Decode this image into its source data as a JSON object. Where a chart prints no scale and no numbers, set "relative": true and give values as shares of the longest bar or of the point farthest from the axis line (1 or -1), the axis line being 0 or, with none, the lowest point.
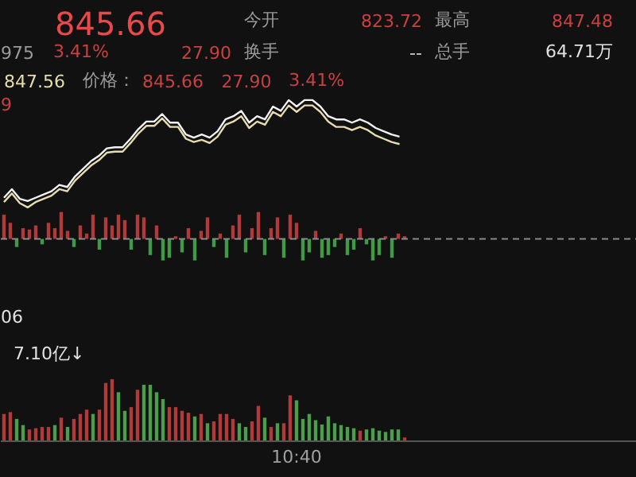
{
  "chart_data": [
    {
      "type": "other",
      "annotations": [
        "845.66",
        "今开",
        "823.72",
        "最高",
        "847.48",
        "975",
        "3.41%",
        "27.90",
        "换手",
        "--",
        "总手",
        "64.71万"
      ]
    },
    {
      "type": "line",
      "relative": true,
      "categories": [
        null,
        null,
        null,
        null,
        null,
        null,
        null,
        null,
        null,
        null,
        null,
        null,
        null,
        null,
        null,
        null,
        null,
        null,
        null,
        null,
        null,
        null,
        null,
        null,
        null,
        null,
        null,
        null,
        null,
        null,
        null,
        null,
        null,
        null,
        null,
        null,
        null,
        null,
        null,
        null,
        null,
        null,
        null,
        null,
        null,
        null,
        null,
        null,
        null,
        null,
        null
      ],
      "series": [
        {
          "color": "#f2f2f2",
          "values": [
            0.09,
            0.17,
            0.08,
            0.06,
            0.09,
            0.12,
            0.15,
            0.21,
            0.19,
            0.29,
            0.36,
            0.43,
            0.48,
            0.55,
            0.56,
            0.56,
            0.64,
            0.73,
            0.8,
            0.8,
            0.87,
            0.79,
            0.79,
            0.68,
            0.65,
            0.68,
            0.65,
            0.71,
            0.82,
            0.85,
            0.9,
            0.79,
            0.85,
            0.82,
            0.94,
            0.9,
            1,
            0.94,
            1,
            1,
            0.94,
            0.85,
            0.82,
            0.82,
            0.79,
            0.82,
            0.79,
            0.74,
            0.71,
            0.68,
            0.66
          ]
        },
        {
          "color": "#e6dcae",
          "values": [
            0.05,
            0.13,
            0.04,
            0.0,
            0.05,
            0.08,
            0.11,
            0.17,
            0.15,
            0.25,
            0.32,
            0.39,
            0.44,
            0.51,
            0.52,
            0.52,
            0.6,
            0.69,
            0.76,
            0.76,
            0.83,
            0.75,
            0.75,
            0.64,
            0.61,
            0.63,
            0.6,
            0.66,
            0.77,
            0.8,
            0.85,
            0.74,
            0.8,
            0.77,
            0.89,
            0.85,
            0.95,
            0.89,
            0.95,
            0.95,
            0.89,
            0.8,
            0.75,
            0.75,
            0.72,
            0.75,
            0.72,
            0.67,
            0.64,
            0.61,
            0.59
          ]
        }
      ],
      "annotations": [
        "847.56",
        "价格：",
        "845.66",
        "27.90",
        "3.41%",
        "9"
      ]
    },
    {
      "type": "bar",
      "relative": true,
      "categories": [
        null,
        null,
        null,
        null,
        null,
        null,
        null,
        null,
        null,
        null,
        null,
        null,
        null,
        null,
        null,
        null,
        null,
        null,
        null,
        null,
        null,
        null,
        null,
        null,
        null,
        null,
        null,
        null,
        null,
        null,
        null,
        null,
        null,
        null,
        null,
        null,
        null,
        null,
        null,
        null,
        null,
        null,
        null,
        null,
        null,
        null,
        null,
        null,
        null,
        null,
        null,
        null,
        null,
        null,
        null,
        null,
        null,
        null,
        null,
        null,
        null,
        null,
        null,
        null
      ],
      "values": [
        0.9,
        0.6,
        -0.3,
        0.4,
        0.35,
        0.5,
        -0.2,
        0.6,
        0.4,
        1.0,
        0.3,
        -0.3,
        0.5,
        0.2,
        0.9,
        -0.4,
        0.8,
        0.5,
        0.9,
        0.7,
        -0.4,
        0.9,
        0.8,
        -0.6,
        0.5,
        -0.8,
        -0.7,
        0.1,
        -0.5,
        0.4,
        -0.8,
        0.3,
        0.8,
        -0.3,
        0.2,
        -0.7,
        0.5,
        0.9,
        -0.5,
        0.4,
        1.0,
        -0.6,
        0.4,
        0.8,
        -0.7,
        0.9,
        0.6,
        -0.8,
        -0.5,
        0.3,
        -0.7,
        -0.6,
        -0.3,
        0.2,
        -0.6,
        -0.4,
        0.4,
        -0.2,
        -0.8,
        -0.6,
        0.1,
        -0.7,
        0.2,
        0.1
      ],
      "ref_lines": [
        {
          "axis": "y",
          "value": 0,
          "color": "#8a8a8a",
          "line_style": "dashed"
        }
      ],
      "colors": [
        "#b03a3a",
        "#b03a3a",
        "#3f9a45",
        "#b03a3a",
        "#b03a3a",
        "#b03a3a",
        "#3f9a45",
        "#b03a3a",
        "#b03a3a",
        "#b03a3a",
        "#b03a3a",
        "#3f9a45",
        "#b03a3a",
        "#b03a3a",
        "#b03a3a",
        "#3f9a45",
        "#b03a3a",
        "#b03a3a",
        "#b03a3a",
        "#b03a3a",
        "#3f9a45",
        "#b03a3a",
        "#b03a3a",
        "#3f9a45",
        "#b03a3a",
        "#3f9a45",
        "#3f9a45",
        "#b03a3a",
        "#3f9a45",
        "#b03a3a",
        "#3f9a45",
        "#b03a3a",
        "#b03a3a",
        "#3f9a45",
        "#b03a3a",
        "#3f9a45",
        "#b03a3a",
        "#b03a3a",
        "#3f9a45",
        "#b03a3a",
        "#b03a3a",
        "#3f9a45",
        "#b03a3a",
        "#b03a3a",
        "#3f9a45",
        "#b03a3a",
        "#b03a3a",
        "#3f9a45",
        "#3f9a45",
        "#b03a3a",
        "#3f9a45",
        "#3f9a45",
        "#3f9a45",
        "#b03a3a",
        "#3f9a45",
        "#3f9a45",
        "#b03a3a",
        "#3f9a45",
        "#3f9a45",
        "#3f9a45",
        "#b03a3a",
        "#3f9a45",
        "#b03a3a",
        "#b03a3a"
      ]
    },
    {
      "type": "bar",
      "relative": true,
      "categories": [
        null,
        null,
        null,
        null,
        null,
        null,
        null,
        null,
        null,
        null,
        null,
        null,
        null,
        null,
        null,
        null,
        null,
        null,
        null,
        null,
        null,
        null,
        null,
        null,
        null,
        null,
        null,
        null,
        null,
        null,
        null,
        null,
        null,
        null,
        null,
        null,
        null,
        null,
        null,
        null,
        null,
        null,
        null,
        null,
        null,
        null,
        null,
        null,
        null,
        null,
        null,
        null,
        null,
        null,
        null,
        null,
        null,
        null,
        null,
        null,
        null,
        null,
        null,
        null
      ],
      "values": [
        0.44,
        0.47,
        0.36,
        0.26,
        0.19,
        0.21,
        0.23,
        0.23,
        0.26,
        0.38,
        0.23,
        0.36,
        0.44,
        0.51,
        0.44,
        0.51,
        0.94,
        1.0,
        0.79,
        0.49,
        0.55,
        0.83,
        0.91,
        0.91,
        0.79,
        0.68,
        0.55,
        0.55,
        0.49,
        0.46,
        0.4,
        0.44,
        0.29,
        0.32,
        0.44,
        0.44,
        0.36,
        0.29,
        0.23,
        0.32,
        0.57,
        0.38,
        0.23,
        0.29,
        0.29,
        0.74,
        0.66,
        0.36,
        0.44,
        0.34,
        0.27,
        0.4,
        0.29,
        0.26,
        0.23,
        0.21,
        0.17,
        0.19,
        0.21,
        0.17,
        0.15,
        0.19,
        0.19,
        0.06
      ],
      "colors": [
        "#b03a3a",
        "#b03a3a",
        "#4c9e4f",
        "#4c9e4f",
        "#b03a3a",
        "#b03a3a",
        "#b03a3a",
        "#b03a3a",
        "#4c9e4f",
        "#b03a3a",
        "#4c9e4f",
        "#b03a3a",
        "#b03a3a",
        "#b03a3a",
        "#4c9e4f",
        "#b03a3a",
        "#b03a3a",
        "#b03a3a",
        "#4c9e4f",
        "#4c9e4f",
        "#b03a3a",
        "#b03a3a",
        "#4c9e4f",
        "#4c9e4f",
        "#4c9e4f",
        "#4c9e4f",
        "#b03a3a",
        "#b03a3a",
        "#b03a3a",
        "#b03a3a",
        "#4c9e4f",
        "#b03a3a",
        "#4c9e4f",
        "#b03a3a",
        "#b03a3a",
        "#b03a3a",
        "#b03a3a",
        "#4c9e4f",
        "#4c9e4f",
        "#b03a3a",
        "#b03a3a",
        "#4c9e4f",
        "#b03a3a",
        "#4c9e4f",
        "#b03a3a",
        "#b03a3a",
        "#4c9e4f",
        "#4c9e4f",
        "#4c9e4f",
        "#4c9e4f",
        "#4c9e4f",
        "#4c9e4f",
        "#4c9e4f",
        "#4c9e4f",
        "#4c9e4f",
        "#4c9e4f",
        "#b03a3a",
        "#4c9e4f",
        "#4c9e4f",
        "#4c9e4f",
        "#4c9e4f",
        "#4c9e4f",
        "#4c9e4f",
        "#b03a3a"
      ],
      "annotations": [
        "06",
        "7.10亿↓",
        "10:40"
      ]
    }
  ]
}
